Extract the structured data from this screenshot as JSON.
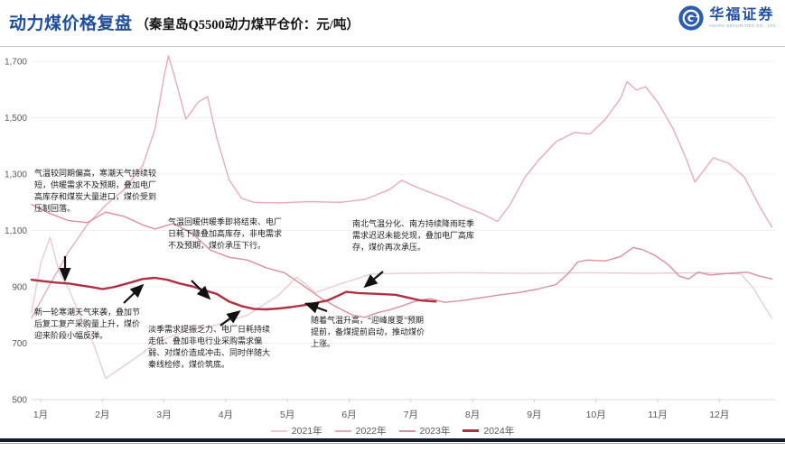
{
  "header": {
    "title": "动力煤价格复盘",
    "subtitle": "（秦皇岛Q5500动力煤平仓价：元/吨）",
    "brand": {
      "name": "华福证券",
      "caption": "HUAFU SECURITIES CO., LTD"
    }
  },
  "chart_data": {
    "type": "line",
    "title": "动力煤价格复盘",
    "subtitle": "（秦皇岛Q5500动力煤平仓价：元/吨）",
    "unit": "元/吨",
    "x_categories": [
      "1月",
      "2月",
      "3月",
      "4月",
      "5月",
      "6月",
      "7月",
      "8月",
      "9月",
      "10月",
      "11月",
      "12月"
    ],
    "y_ticks": [
      500,
      700,
      900,
      1100,
      1300,
      1500,
      1700
    ],
    "ylim": [
      500,
      1700
    ],
    "grid": true,
    "legend_position": "bottom",
    "series": [
      {
        "name": "2021年",
        "color": "#e9ccd2",
        "emphasis": false,
        "points": [
          [
            1.0,
            810
          ],
          [
            1.15,
            985
          ],
          [
            1.3,
            1075
          ],
          [
            1.45,
            950
          ],
          [
            1.6,
            895
          ],
          [
            1.8,
            790
          ],
          [
            2.0,
            700
          ],
          [
            2.2,
            575
          ],
          [
            2.5,
            620
          ],
          [
            2.8,
            665
          ],
          [
            3.0,
            700
          ],
          [
            3.5,
            745
          ],
          [
            4.0,
            765
          ],
          [
            4.5,
            800
          ],
          [
            5.0,
            870
          ],
          [
            5.3,
            935
          ],
          [
            5.6,
            880
          ],
          [
            6.0,
            910
          ],
          [
            6.5,
            945
          ],
          [
            7.0,
            948
          ],
          [
            8.0,
            950
          ],
          [
            9.0,
            948
          ],
          [
            10.0,
            950
          ],
          [
            11.0,
            948
          ],
          [
            12.0,
            950
          ],
          [
            12.5,
            945
          ],
          [
            12.7,
            895
          ],
          [
            12.85,
            840
          ],
          [
            13.0,
            788
          ]
        ]
      },
      {
        "name": "2022年",
        "color": "#e7abb7",
        "emphasis": false,
        "points": [
          [
            1.0,
            790
          ],
          [
            1.3,
            910
          ],
          [
            1.6,
            1025
          ],
          [
            1.9,
            1120
          ],
          [
            2.2,
            1190
          ],
          [
            2.5,
            1245
          ],
          [
            2.8,
            1330
          ],
          [
            3.0,
            1460
          ],
          [
            3.15,
            1650
          ],
          [
            3.22,
            1720
          ],
          [
            3.35,
            1620
          ],
          [
            3.5,
            1495
          ],
          [
            3.7,
            1555
          ],
          [
            3.85,
            1575
          ],
          [
            4.0,
            1430
          ],
          [
            4.2,
            1280
          ],
          [
            4.4,
            1215
          ],
          [
            4.6,
            1200
          ],
          [
            5.0,
            1198
          ],
          [
            5.5,
            1202
          ],
          [
            6.0,
            1200
          ],
          [
            6.4,
            1210
          ],
          [
            6.8,
            1245
          ],
          [
            7.0,
            1278
          ],
          [
            7.15,
            1262
          ],
          [
            7.4,
            1240
          ],
          [
            7.7,
            1215
          ],
          [
            8.0,
            1185
          ],
          [
            8.3,
            1160
          ],
          [
            8.55,
            1132
          ],
          [
            8.75,
            1190
          ],
          [
            9.0,
            1290
          ],
          [
            9.2,
            1345
          ],
          [
            9.5,
            1415
          ],
          [
            9.8,
            1448
          ],
          [
            10.05,
            1442
          ],
          [
            10.3,
            1495
          ],
          [
            10.55,
            1570
          ],
          [
            10.65,
            1628
          ],
          [
            10.8,
            1598
          ],
          [
            10.95,
            1610
          ],
          [
            11.15,
            1555
          ],
          [
            11.4,
            1460
          ],
          [
            11.6,
            1360
          ],
          [
            11.75,
            1272
          ],
          [
            11.9,
            1315
          ],
          [
            12.05,
            1358
          ],
          [
            12.3,
            1338
          ],
          [
            12.55,
            1290
          ],
          [
            12.8,
            1185
          ],
          [
            13.0,
            1112
          ]
        ]
      },
      {
        "name": "2023年",
        "color": "#d9909e",
        "emphasis": false,
        "points": [
          [
            1.0,
            1192
          ],
          [
            1.3,
            1160
          ],
          [
            1.6,
            1135
          ],
          [
            1.9,
            1128
          ],
          [
            2.2,
            1165
          ],
          [
            2.5,
            1150
          ],
          [
            2.8,
            1120
          ],
          [
            3.0,
            1105
          ],
          [
            3.3,
            1125
          ],
          [
            3.6,
            1090
          ],
          [
            3.9,
            1030
          ],
          [
            4.2,
            1005
          ],
          [
            4.5,
            995
          ],
          [
            4.8,
            968
          ],
          [
            5.1,
            950
          ],
          [
            5.4,
            905
          ],
          [
            5.7,
            858
          ],
          [
            6.0,
            822
          ],
          [
            6.2,
            800
          ],
          [
            6.4,
            792
          ],
          [
            6.6,
            808
          ],
          [
            6.8,
            818
          ],
          [
            7.0,
            832
          ],
          [
            7.2,
            848
          ],
          [
            7.45,
            858
          ],
          [
            7.7,
            845
          ],
          [
            8.0,
            852
          ],
          [
            8.3,
            862
          ],
          [
            8.6,
            872
          ],
          [
            8.9,
            880
          ],
          [
            9.2,
            892
          ],
          [
            9.5,
            908
          ],
          [
            9.7,
            948
          ],
          [
            9.85,
            988
          ],
          [
            10.0,
            995
          ],
          [
            10.3,
            992
          ],
          [
            10.55,
            1008
          ],
          [
            10.75,
            1040
          ],
          [
            10.9,
            1032
          ],
          [
            11.1,
            1012
          ],
          [
            11.3,
            982
          ],
          [
            11.5,
            938
          ],
          [
            11.65,
            928
          ],
          [
            11.8,
            952
          ],
          [
            12.0,
            942
          ],
          [
            12.3,
            948
          ],
          [
            12.6,
            952
          ],
          [
            12.8,
            938
          ],
          [
            13.0,
            928
          ]
        ]
      },
      {
        "name": "2024年",
        "color": "#b03042",
        "emphasis": true,
        "points": [
          [
            1.0,
            925
          ],
          [
            1.2,
            920
          ],
          [
            1.4,
            915
          ],
          [
            1.6,
            912
          ],
          [
            1.8,
            905
          ],
          [
            2.0,
            898
          ],
          [
            2.15,
            892
          ],
          [
            2.35,
            900
          ],
          [
            2.6,
            915
          ],
          [
            2.8,
            928
          ],
          [
            3.0,
            932
          ],
          [
            3.2,
            925
          ],
          [
            3.4,
            912
          ],
          [
            3.6,
            902
          ],
          [
            3.8,
            888
          ],
          [
            4.0,
            875
          ],
          [
            4.2,
            848
          ],
          [
            4.4,
            832
          ],
          [
            4.6,
            822
          ],
          [
            4.8,
            820
          ],
          [
            5.0,
            823
          ],
          [
            5.2,
            828
          ],
          [
            5.5,
            838
          ],
          [
            5.8,
            852
          ],
          [
            6.0,
            872
          ],
          [
            6.1,
            882
          ],
          [
            6.3,
            878
          ],
          [
            6.6,
            875
          ],
          [
            6.9,
            872
          ],
          [
            7.1,
            862
          ],
          [
            7.3,
            852
          ],
          [
            7.55,
            848
          ]
        ]
      }
    ],
    "annotations": [
      {
        "text": "气温较同期偏高，寒潮天气持续较短，供暖需求不及预期，叠加电厂高库存和煤炭大量进口，煤价受到压制回落。"
      },
      {
        "text": "气温回暖供暖季即将结束、电厂日耗下降叠加高库存，非电需求不及预期，煤价承压下行。"
      },
      {
        "text": "南北气温分化、南方持续降雨旺季需求迟迟未能兑现，叠加电厂高库存，煤价再次承压。"
      },
      {
        "text": "新一轮寒潮天气来袭，叠加节后复工复产采购量上升，煤价迎来阶段小幅反弹。"
      },
      {
        "text": "淡季需求提振乏力、电厂日耗持续走低、叠加非电行业采购需求偏弱、对煤价造成冲击、同时伴随大秦线检修，煤价筑底。"
      },
      {
        "text": "随着气温升高，“迎峰度夏”预期提前，备煤提前启动，推动煤价上涨。"
      }
    ],
    "colors": {
      "title_blue": "#1f4e9e",
      "brand_blue": "#1e4fa0",
      "axis_gray": "#595959"
    }
  }
}
